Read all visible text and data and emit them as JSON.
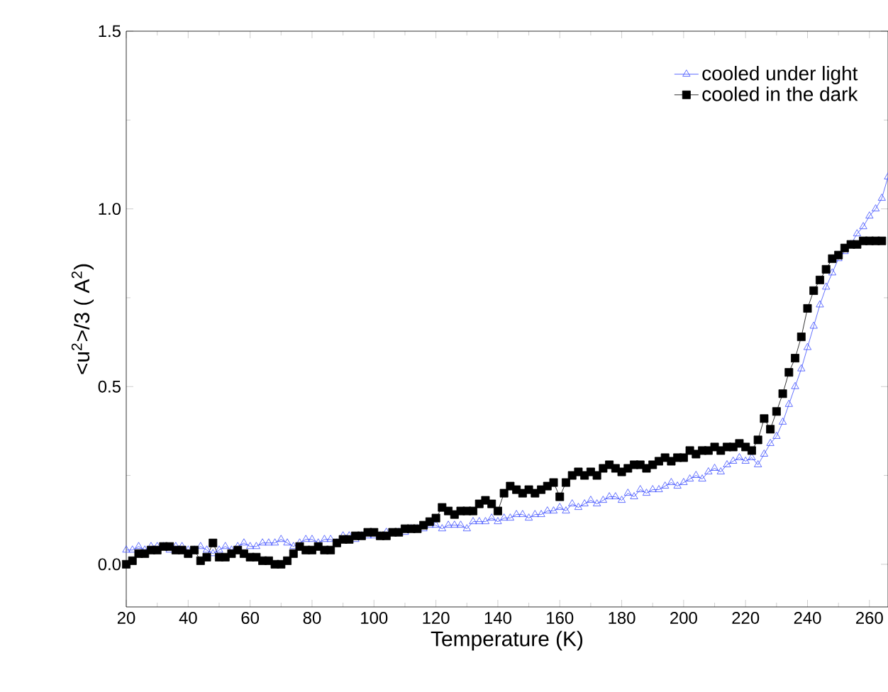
{
  "chart_data": {
    "type": "line",
    "xlabel": "Temperature (K)",
    "ylabel": "<u$^{2}$>/3 ( A$^{2}$)",
    "xlim": [
      20,
      266
    ],
    "ylim": [
      -0.12,
      1.5
    ],
    "xticks": [
      20,
      40,
      60,
      80,
      100,
      120,
      140,
      160,
      180,
      200,
      220,
      240,
      260
    ],
    "yticks": [
      {
        "value": 0,
        "label": "0.0"
      },
      0.5,
      {
        "value": 1,
        "label": "1.0"
      },
      1.5
    ],
    "legend": "top right",
    "grid": false,
    "line_style": "solid",
    "x": [
      20,
      22,
      24,
      26,
      28,
      30,
      32,
      34,
      36,
      38,
      40,
      42,
      44,
      46,
      48,
      50,
      52,
      54,
      56,
      58,
      60,
      62,
      64,
      66,
      68,
      70,
      72,
      74,
      76,
      78,
      80,
      82,
      84,
      86,
      88,
      90,
      92,
      94,
      96,
      98,
      100,
      102,
      104,
      106,
      108,
      110,
      112,
      114,
      116,
      118,
      120,
      122,
      124,
      126,
      128,
      130,
      132,
      134,
      136,
      138,
      140,
      142,
      144,
      146,
      148,
      150,
      152,
      154,
      156,
      158,
      160,
      162,
      164,
      166,
      168,
      170,
      172,
      174,
      176,
      178,
      180,
      182,
      184,
      186,
      188,
      190,
      192,
      194,
      196,
      198,
      200,
      202,
      204,
      206,
      208,
      210,
      212,
      214,
      216,
      218,
      220,
      222,
      224,
      226,
      228,
      230,
      232,
      234,
      236,
      238,
      240,
      242,
      244,
      246,
      248,
      250,
      252,
      254,
      256,
      258,
      260,
      262,
      264,
      266
    ],
    "series": [
      {
        "name": "cooled under light",
        "color": "#3b4cff",
        "marker": "triangle",
        "values": [
          0.04,
          0.04,
          0.05,
          0.04,
          0.05,
          0.05,
          0.05,
          0.04,
          0.05,
          0.05,
          0.04,
          0.04,
          0.05,
          0.04,
          0.03,
          0.04,
          0.05,
          0.04,
          0.05,
          0.06,
          0.05,
          0.05,
          0.06,
          0.06,
          0.06,
          0.07,
          0.06,
          0.05,
          0.06,
          0.07,
          0.07,
          0.06,
          0.07,
          0.07,
          0.06,
          0.08,
          0.08,
          0.07,
          0.08,
          0.08,
          0.08,
          0.08,
          0.09,
          null,
          0.09,
          0.09,
          0.1,
          0.1,
          0.1,
          0.11,
          0.11,
          0.1,
          0.11,
          0.11,
          0.11,
          0.1,
          0.12,
          0.12,
          0.12,
          0.13,
          0.12,
          0.13,
          0.13,
          0.14,
          0.14,
          0.13,
          0.14,
          0.14,
          0.15,
          0.15,
          0.16,
          0.15,
          0.17,
          0.16,
          0.17,
          0.18,
          0.17,
          0.18,
          0.19,
          0.19,
          0.18,
          0.2,
          0.19,
          0.21,
          0.2,
          0.21,
          0.21,
          0.22,
          0.23,
          0.22,
          0.23,
          0.24,
          0.25,
          0.24,
          0.26,
          0.27,
          0.26,
          0.28,
          0.29,
          0.3,
          0.29,
          0.3,
          0.28,
          0.31,
          0.34,
          0.36,
          0.4,
          0.45,
          0.5,
          0.55,
          0.61,
          0.67,
          0.73,
          0.78,
          0.82,
          0.86,
          0.88,
          0.9,
          0.93,
          0.95,
          0.98,
          1.0,
          1.03,
          1.09
        ]
      },
      {
        "name": "cooled in the dark",
        "color": "#000000",
        "marker": "square",
        "values": [
          0.0,
          0.01,
          0.03,
          0.03,
          0.04,
          0.04,
          0.05,
          0.05,
          0.04,
          0.04,
          0.03,
          0.04,
          0.01,
          0.02,
          0.06,
          0.02,
          0.02,
          0.03,
          0.04,
          0.03,
          0.02,
          0.02,
          0.01,
          0.01,
          0.0,
          0.0,
          0.01,
          0.03,
          0.05,
          0.04,
          0.04,
          0.05,
          0.04,
          0.04,
          0.06,
          0.07,
          0.07,
          0.08,
          0.08,
          0.09,
          0.09,
          0.08,
          0.08,
          0.09,
          0.09,
          0.1,
          0.1,
          0.1,
          0.11,
          0.12,
          0.13,
          0.16,
          0.15,
          0.14,
          0.15,
          0.15,
          0.15,
          0.17,
          0.18,
          0.17,
          0.15,
          0.2,
          0.22,
          0.21,
          0.2,
          0.21,
          0.2,
          0.21,
          0.22,
          0.23,
          0.19,
          0.23,
          0.25,
          0.26,
          0.25,
          0.26,
          0.25,
          0.27,
          0.28,
          0.27,
          0.26,
          0.27,
          0.28,
          0.28,
          0.27,
          0.28,
          0.29,
          0.3,
          0.29,
          0.3,
          0.3,
          0.32,
          0.31,
          0.32,
          0.32,
          0.33,
          0.32,
          0.33,
          0.33,
          0.34,
          0.33,
          0.32,
          0.35,
          0.41,
          0.38,
          0.43,
          0.48,
          0.54,
          0.58,
          0.64,
          0.72,
          0.77,
          0.8,
          0.83,
          0.86,
          0.87,
          0.89,
          0.9,
          0.9,
          0.91,
          0.91,
          0.91,
          0.91,
          null
        ]
      }
    ]
  }
}
